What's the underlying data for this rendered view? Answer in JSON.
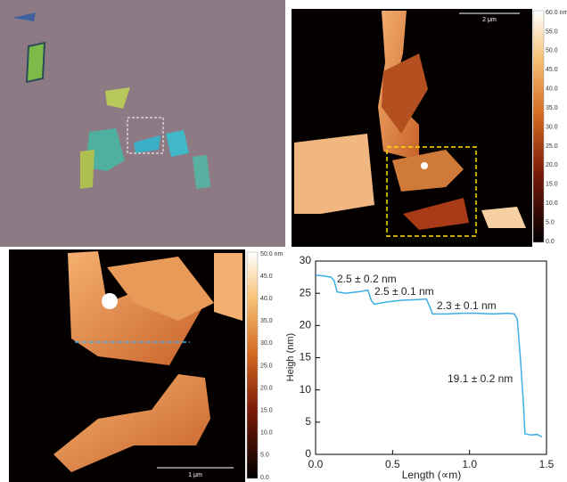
{
  "images": {
    "b_scale_bar": "2 μm",
    "b_colorbar": [
      "60.0 nm",
      "55.0",
      "50.0",
      "45.0",
      "40.0",
      "35.0",
      "30.0",
      "25.0",
      "20.0",
      "15.0",
      "10.0",
      "5.0",
      "0.0"
    ],
    "c_scale_bar": "1 μm",
    "c_colorbar": [
      "50.0 nm",
      "45.0",
      "40.0",
      "35.0",
      "30.0",
      "25.0",
      "20.0",
      "15.0",
      "10.0",
      "5.0",
      "0.0"
    ]
  },
  "chart_data": {
    "type": "line",
    "x_label": "Length (∝m)",
    "y_label": "Heigh (nm)",
    "annotations": [
      "2.5 ± 0.2 nm",
      "2.5 ± 0.1 nm",
      "2.3 ± 0.1 nm",
      "19.1 ± 0.2 nm"
    ],
    "x": [
      0,
      0.05,
      0.1,
      0.12,
      0.14,
      0.2,
      0.3,
      0.34,
      0.36,
      0.38,
      0.45,
      0.55,
      0.65,
      0.72,
      0.74,
      0.76,
      0.85,
      0.95,
      1.05,
      1.15,
      1.25,
      1.29,
      1.31,
      1.33,
      1.35,
      1.36,
      1.4,
      1.44,
      1.47
    ],
    "series": [
      {
        "name": "profile",
        "color": "#3aaee6",
        "values": [
          27.8,
          27.7,
          27.5,
          27,
          25.2,
          25.0,
          25.3,
          25.5,
          24,
          23.3,
          23.6,
          23.9,
          24,
          24.1,
          23,
          21.8,
          21.8,
          21.9,
          21.9,
          21.8,
          21.9,
          21.8,
          21,
          15,
          8,
          3.2,
          3.0,
          3.1,
          2.7
        ]
      }
    ],
    "xlim": [
      0,
      1.5
    ],
    "xticks": [
      {
        "value": 0,
        "label": "0.0"
      },
      0.5,
      {
        "value": 1,
        "label": "1.0"
      },
      1.5
    ],
    "ylim": [
      0,
      30
    ],
    "yticks": [
      0,
      5,
      10,
      15,
      20,
      25,
      30
    ]
  }
}
